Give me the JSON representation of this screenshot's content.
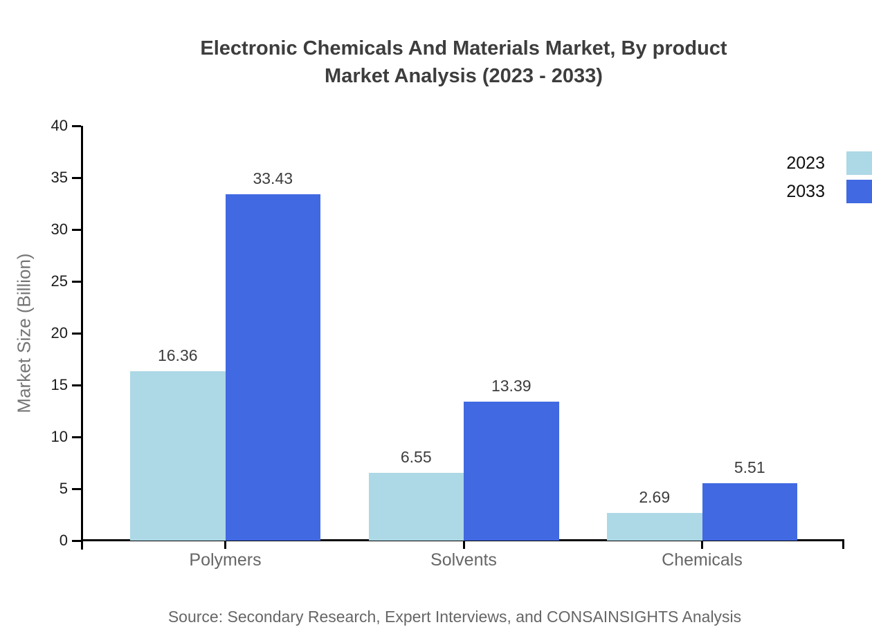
{
  "title": {
    "line1": "Electronic Chemicals And Materials Market, By product",
    "line2": "Market Analysis (2023 - 2033)"
  },
  "chart_data": {
    "type": "bar",
    "title": "Electronic Chemicals And Materials Market, By product Market Analysis (2023 - 2033)",
    "categories": [
      "Polymers",
      "Solvents",
      "Chemicals"
    ],
    "series": [
      {
        "name": "2023",
        "color": "#ADD8E6",
        "values": [
          16.36,
          6.55,
          2.69
        ]
      },
      {
        "name": "2033",
        "color": "#4169E1",
        "values": [
          33.43,
          13.39,
          5.51
        ]
      }
    ],
    "xlabel": "",
    "ylabel": "Market Size (Billion)",
    "ylim": [
      0,
      40
    ],
    "yticks": [
      0,
      5,
      10,
      15,
      20,
      25,
      30,
      35,
      40
    ],
    "grid": false,
    "legend_position": "top-right",
    "value_labels": true
  },
  "source": "Source: Secondary Research, Expert Interviews, and CONSAINSIGHTS Analysis",
  "colors": {
    "series_2023": "#ADD8E6",
    "series_2033": "#4169E1",
    "axis": "#000000",
    "title_text": "#3d3d3d",
    "tick_label_text": "#1c1c1c",
    "category_text": "#666666",
    "ylabel_text": "#757575",
    "value_label_text": "#3d3d3d",
    "source_text": "#666666",
    "background": "#ffffff"
  }
}
